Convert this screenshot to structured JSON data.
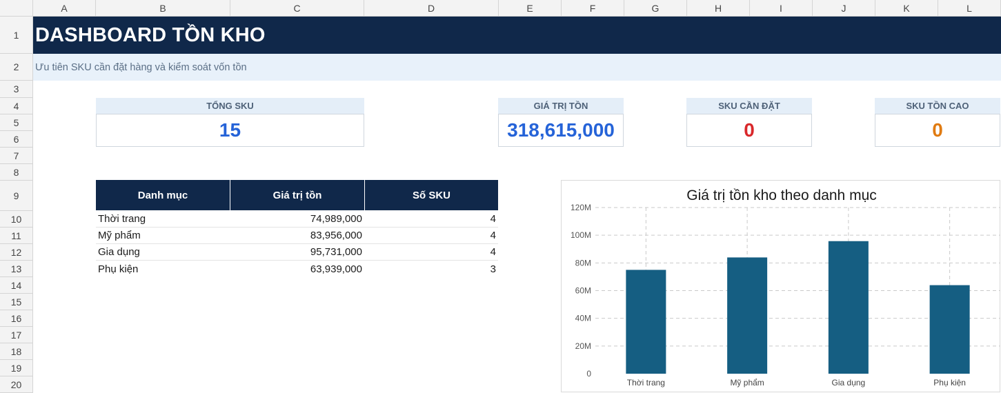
{
  "sheet": {
    "columns": [
      "A",
      "B",
      "C",
      "D",
      "E",
      "F",
      "G",
      "H",
      "I",
      "J",
      "K",
      "L"
    ],
    "rows": [
      "1",
      "2",
      "3",
      "4",
      "5",
      "6",
      "7",
      "8",
      "9",
      "10",
      "11",
      "12",
      "13",
      "14",
      "15",
      "16",
      "17",
      "18",
      "19",
      "20"
    ]
  },
  "header": {
    "title": "DASHBOARD TỒN KHO",
    "subtitle": "Ưu tiên SKU cần đặt hàng và kiểm soát vốn tồn"
  },
  "kpis": [
    {
      "label": "TỔNG SKU",
      "value": "15",
      "color": "#2563d8"
    },
    {
      "label": "GIÁ TRỊ TỒN",
      "value": "318,615,000",
      "color": "#2563d8"
    },
    {
      "label": "SKU CẦN ĐẶT",
      "value": "0",
      "color": "#d9282b"
    },
    {
      "label": "SKU TỒN CAO",
      "value": "0",
      "color": "#e07b12"
    }
  ],
  "table": {
    "headers": [
      "Danh mục",
      "Giá trị tồn",
      "Số SKU"
    ],
    "rows": [
      {
        "category": "Thời trang",
        "value": "74,989,000",
        "sku": "4"
      },
      {
        "category": "Mỹ phẩm",
        "value": "83,956,000",
        "sku": "4"
      },
      {
        "category": "Gia dụng",
        "value": "95,731,000",
        "sku": "4"
      },
      {
        "category": "Phụ kiện",
        "value": "63,939,000",
        "sku": "3"
      }
    ]
  },
  "chart_data": {
    "type": "bar",
    "title": "Giá trị tồn kho theo danh mục",
    "categories": [
      "Thời trang",
      "Mỹ phẩm",
      "Gia dụng",
      "Phụ kiện"
    ],
    "values": [
      74989000,
      83956000,
      95731000,
      63939000
    ],
    "ylim": [
      0,
      120000000
    ],
    "yticks": [
      0,
      20000000,
      40000000,
      60000000,
      80000000,
      100000000,
      120000000
    ],
    "ytick_labels": [
      "0",
      "20M",
      "40M",
      "60M",
      "80M",
      "100M",
      "120M"
    ],
    "grid": true,
    "legend": "none",
    "bar_color": "#155e82"
  }
}
